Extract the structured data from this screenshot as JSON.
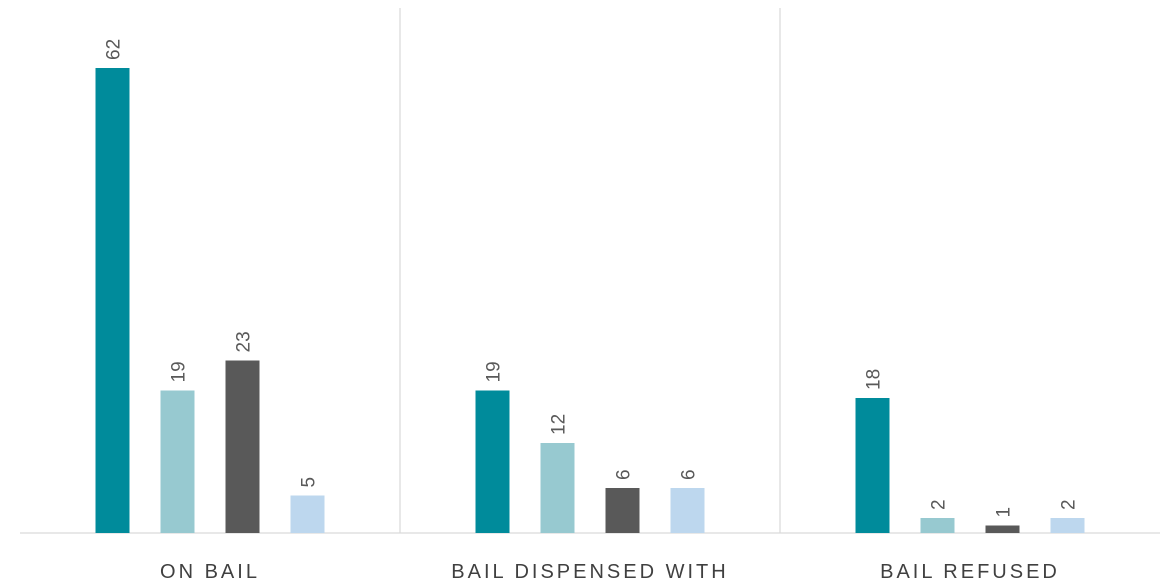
{
  "chart_data": {
    "type": "bar",
    "categories": [
      "ON BAIL",
      "BAIL DISPENSED WITH",
      "BAIL REFUSED"
    ],
    "series": [
      {
        "values": [
          62,
          19,
          18
        ],
        "color": "#008B9B"
      },
      {
        "values": [
          19,
          12,
          2
        ],
        "color": "#97C9D0"
      },
      {
        "values": [
          23,
          6,
          1
        ],
        "color": "#595959"
      },
      {
        "values": [
          5,
          6,
          2
        ],
        "color": "#BDD7EE"
      }
    ],
    "ylim": [
      0,
      70
    ],
    "data_labels": true,
    "data_label_color": "#808080",
    "grid": false,
    "legend": "none"
  }
}
